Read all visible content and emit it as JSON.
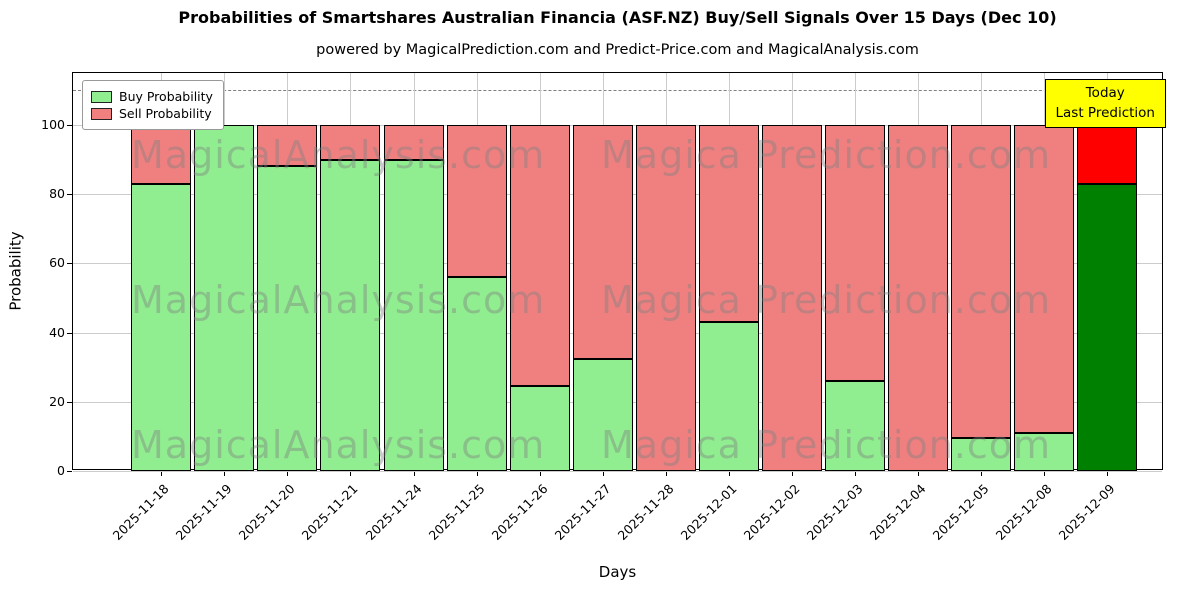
{
  "chart_data": {
    "type": "bar",
    "stacked": true,
    "title": "Probabilities of Smartshares Australian Financia (ASF.NZ) Buy/Sell Signals Over 15 Days (Dec 10)",
    "subtitle": "powered by MagicalPrediction.com and Predict-Price.com and MagicalAnalysis.com",
    "xlabel": "Days",
    "ylabel": "Probability",
    "ylim": [
      0,
      115
    ],
    "yticks": [
      0,
      20,
      40,
      60,
      80,
      100
    ],
    "dashed_line_y": 110,
    "grid": true,
    "legend_position": "upper-left",
    "categories": [
      "2025-11-18",
      "2025-11-19",
      "2025-11-20",
      "2025-11-21",
      "2025-11-24",
      "2025-11-25",
      "2025-11-26",
      "2025-11-27",
      "2025-11-28",
      "2025-12-01",
      "2025-12-02",
      "2025-12-03",
      "2025-12-04",
      "2025-12-05",
      "2025-12-08",
      "2025-12-09"
    ],
    "series": [
      {
        "name": "Buy Probability",
        "color": "#90EE90",
        "values": [
          83,
          100,
          88,
          90,
          90,
          56,
          24.5,
          32.5,
          0,
          43,
          0,
          26,
          0,
          9.5,
          11,
          83
        ]
      },
      {
        "name": "Sell Probability",
        "color": "#F08080",
        "values": [
          17,
          0,
          12,
          10,
          10,
          44,
          75.5,
          67.5,
          100,
          57,
          100,
          74,
          100,
          90.5,
          89,
          17
        ]
      }
    ],
    "today_index": 15,
    "today_colors": {
      "buy": "#008000",
      "sell": "#FF0000"
    },
    "bar_edge_color": "#000000",
    "annotation": {
      "line1": "Today",
      "line2": "Last Prediction",
      "bg_color": "#FFFF00"
    },
    "watermarks": {
      "left": "MagicalAnalysis.com",
      "right": "Magica Prediction.com"
    }
  }
}
